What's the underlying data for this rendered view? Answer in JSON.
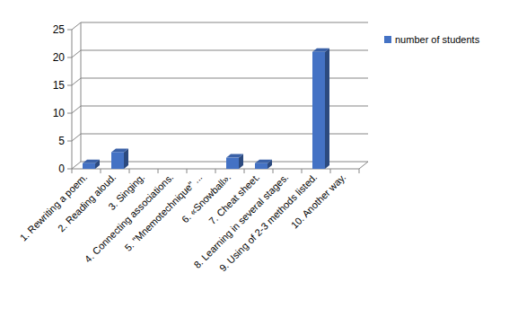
{
  "chart_data": {
    "type": "bar",
    "categories": [
      "1. Rewriting a poem.",
      "2. Reading aloud.",
      "3. Singing.",
      "4. Connecting associations.",
      "5. \"Mnemotechnique\" ...",
      "6. «Snowball».",
      "7. Cheat sheet.",
      "8. Learning in several stages.",
      "9. Using of 2-3 methods listed.",
      "10. Another way."
    ],
    "series": [
      {
        "name": "number of students",
        "color": "#4472c4",
        "values": [
          1,
          3,
          0,
          0,
          0,
          2,
          1,
          0,
          21,
          0
        ]
      }
    ],
    "ylim": [
      0,
      25
    ],
    "yticks": [
      0,
      5,
      10,
      15,
      20,
      25
    ],
    "grid": true,
    "legend": "right"
  }
}
